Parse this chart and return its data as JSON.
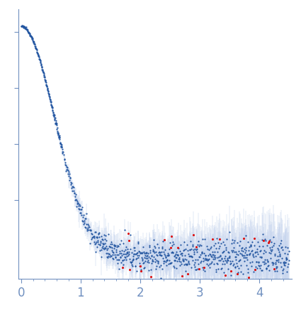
{
  "title": "",
  "xlabel": "",
  "ylabel": "",
  "xlim": [
    -0.05,
    4.55
  ],
  "ylim": [
    -0.08,
    0.88
  ],
  "x_ticks": [
    0,
    1,
    2,
    3,
    4
  ],
  "dot_color": "#2255a0",
  "error_color": "#aec4e8",
  "outlier_color": "#dd1111",
  "bg_color": "#ffffff",
  "axis_color": "#7090c0",
  "tick_color": "#7090c0",
  "spine_color": "#7090c0"
}
